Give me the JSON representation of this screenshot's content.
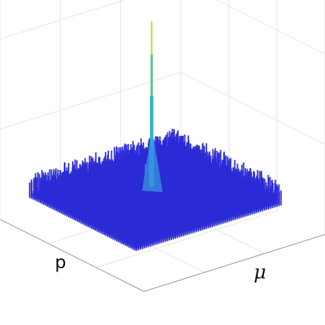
{
  "chart_data": {
    "type": "surface3d",
    "xlabel": "p",
    "ylabel": "μ",
    "zlabel": "",
    "grid": true,
    "colormap": "parula",
    "colors": {
      "low": "#2b2bd6",
      "mid": "#2f7fe6",
      "high": "#c9e03a",
      "grid": "#e2e2e2",
      "axis": "#8c8c8c"
    },
    "surface": {
      "x_range": [
        0,
        1
      ],
      "y_range": [
        0,
        1
      ],
      "noise_floor": 0.12,
      "noise_amplitude": 0.08,
      "peak": {
        "x": 0.5,
        "y": 0.48,
        "value": 1.0
      }
    },
    "zlim": [
      0,
      1.1
    ]
  }
}
